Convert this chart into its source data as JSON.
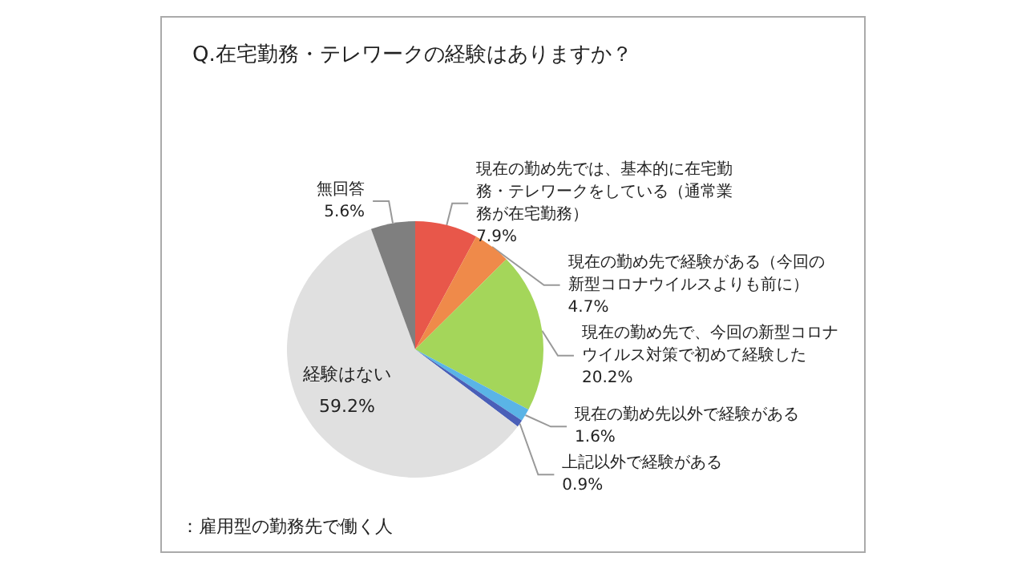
{
  "chart_data": {
    "type": "pie",
    "title": "Q.在宅勤務・テレワークの経験はありますか？",
    "categories": [
      "現在の勤め先では、基本的に在宅勤務・テレワークをしている（通常業務が在宅勤務）",
      "現在の勤め先で経験がある（今回の新型コロナウイルスよりも前に）",
      "現在の勤め先で、今回の新型コロナウイルス対策で初めて経験した",
      "現在の勤め先以外で経験がある",
      "上記以外で経験がある",
      "経験はない",
      "無回答"
    ],
    "values": [
      7.9,
      4.7,
      20.2,
      1.6,
      0.9,
      59.2,
      5.6
    ],
    "colors": [
      "#e8574a",
      "#ef8a4a",
      "#a4d65a",
      "#5ab4e6",
      "#4a5fb8",
      "#e0e0e0",
      "#7f7f7f"
    ],
    "annotations": [
      "：雇用型の勤務先で働く人"
    ],
    "value_labels": [
      "7.9%",
      "4.7%",
      "20.2%",
      "1.6%",
      "0.9%",
      "59.2%",
      "5.6%"
    ],
    "legend": false
  }
}
